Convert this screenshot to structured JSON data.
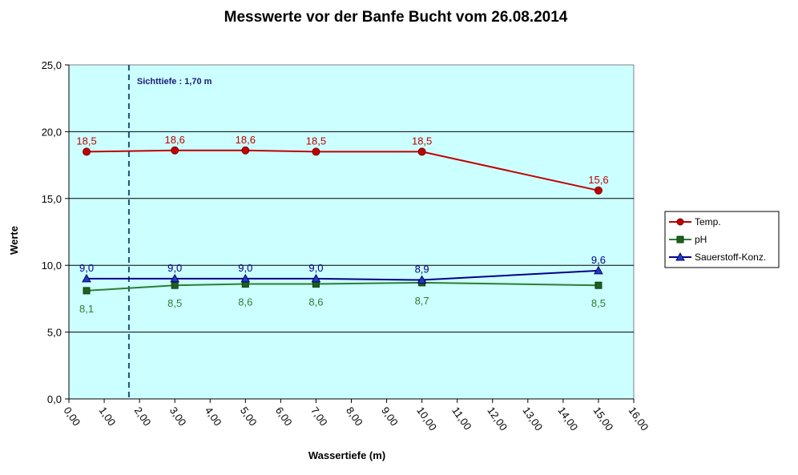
{
  "chart_data": {
    "type": "line",
    "title": "Messwerte vor der Banfe Bucht vom 26.08.2014",
    "xlabel": "Wassertiefe  (m)",
    "ylabel": "Werte",
    "xlim": [
      0,
      16
    ],
    "ylim": [
      0,
      25
    ],
    "x_ticks": [
      "0,00",
      "1,00",
      "2,00",
      "3,00",
      "4,00",
      "5,00",
      "6,00",
      "7,00",
      "8,00",
      "9,00",
      "10,00",
      "11,00",
      "12,00",
      "13,00",
      "14,00",
      "15,00",
      "16,00"
    ],
    "y_ticks": [
      "0,0",
      "5,0",
      "10,0",
      "15,0",
      "20,0",
      "25,0"
    ],
    "grid": "horizontal",
    "legend_position": "right",
    "plot_background": "#ccffff",
    "annotation": {
      "text": "Sichttiefe : 1,70 m",
      "x": 1.7,
      "color": "#1f4e79"
    },
    "series": [
      {
        "name": "Temp.",
        "color": "#c00000",
        "marker": "circle",
        "marker_color": "#c00000",
        "x": [
          0.5,
          3,
          5,
          7,
          10,
          15
        ],
        "values": [
          18.5,
          18.6,
          18.6,
          18.5,
          18.5,
          15.6
        ],
        "labels": [
          "18,5",
          "18,6",
          "18,6",
          "18,5",
          "18,5",
          "15,6"
        ],
        "label_position": "above"
      },
      {
        "name": "pH",
        "color": "#2e7d32",
        "marker": "square",
        "marker_color": "#1f5f1f",
        "x": [
          0.5,
          3,
          5,
          7,
          10,
          15
        ],
        "values": [
          8.1,
          8.5,
          8.6,
          8.6,
          8.7,
          8.5
        ],
        "labels": [
          "8,1",
          "8,5",
          "8,6",
          "8,6",
          "8,7",
          "8,5"
        ],
        "label_position": "below"
      },
      {
        "name": "Sauerstoff-Konz.",
        "color": "#00008b",
        "marker": "triangle",
        "marker_color": "#1f3fbf",
        "x": [
          0.5,
          3,
          5,
          7,
          10,
          15
        ],
        "values": [
          9.0,
          9.0,
          9.0,
          9.0,
          8.9,
          9.6
        ],
        "labels": [
          "9,0",
          "9,0",
          "9,0",
          "9,0",
          "8,9",
          "9,6"
        ],
        "label_position": "above"
      }
    ]
  }
}
